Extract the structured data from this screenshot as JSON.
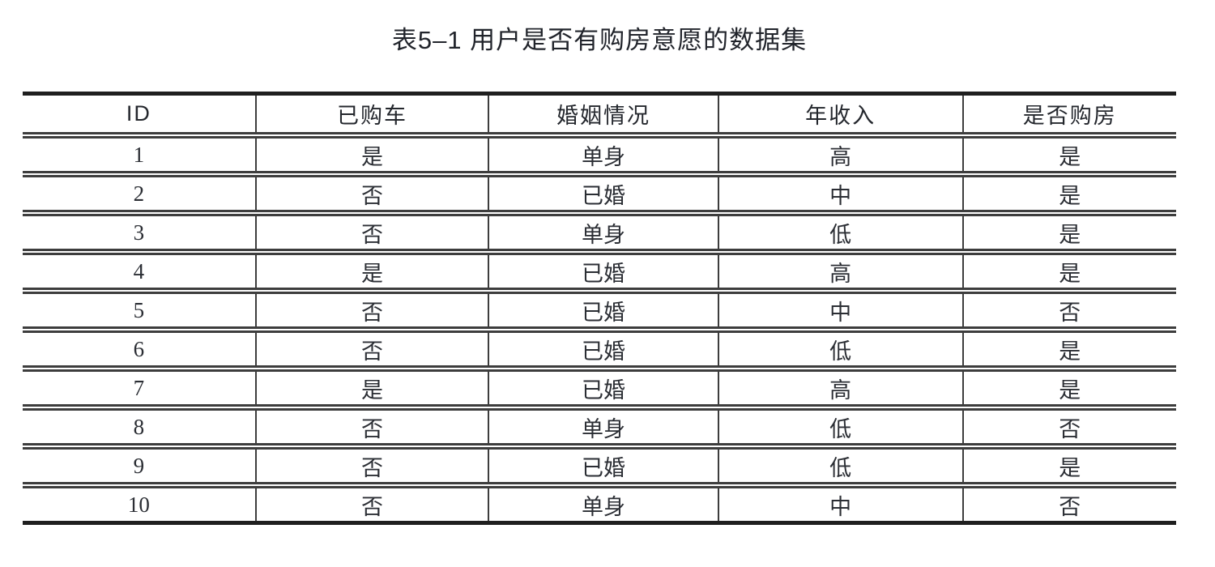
{
  "caption": "表5–1 用户是否有购房意愿的数据集",
  "table": {
    "columns": [
      "ID",
      "已购车",
      "婚姻情况",
      "年收入",
      "是否购房"
    ],
    "rows": [
      [
        "1",
        "是",
        "单身",
        "高",
        "是"
      ],
      [
        "2",
        "否",
        "已婚",
        "中",
        "是"
      ],
      [
        "3",
        "否",
        "单身",
        "低",
        "是"
      ],
      [
        "4",
        "是",
        "已婚",
        "高",
        "是"
      ],
      [
        "5",
        "否",
        "已婚",
        "中",
        "否"
      ],
      [
        "6",
        "否",
        "已婚",
        "低",
        "是"
      ],
      [
        "7",
        "是",
        "已婚",
        "高",
        "是"
      ],
      [
        "8",
        "否",
        "单身",
        "低",
        "否"
      ],
      [
        "9",
        "否",
        "已婚",
        "低",
        "是"
      ],
      [
        "10",
        "否",
        "单身",
        "中",
        "否"
      ]
    ]
  },
  "colors": {
    "background": "#ffffff",
    "thick_border": "#1f1f1f",
    "thin_border": "#3d3d3d",
    "text": "#2b2e34"
  }
}
